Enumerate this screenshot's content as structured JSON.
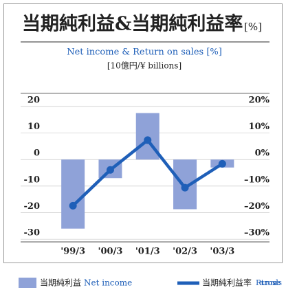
{
  "chart_data": {
    "type": "bar_line",
    "title": "当期純利益&当期純利益率",
    "title_unit": "[%]",
    "subtitle": "Net income  & Return on sales [%]",
    "unit_label": "[10億円/¥ billions]",
    "categories": [
      "'99/3",
      "'00/3",
      "'01/3",
      "'02/3",
      "'03/3"
    ],
    "series": [
      {
        "name": "当期純利益",
        "name_en": "Net income",
        "type": "bar",
        "color": "#8fa2d8",
        "values": [
          -26,
          -7,
          17.5,
          -18.7,
          -3
        ]
      },
      {
        "name": "当期純利益率",
        "name_en": "Return on sales",
        "type": "line",
        "axis": "y2",
        "color": "#1f5fb8",
        "values": [
          -17.4,
          -3.9,
          7.3,
          -10.6,
          -1.6
        ]
      }
    ],
    "ylim": [
      -31,
      25
    ],
    "yticks": [
      20,
      10,
      0,
      -10,
      -20,
      -30
    ],
    "y2lim": [
      -31,
      25
    ],
    "y2ticks": [
      {
        "value": 20,
        "label": "20%"
      },
      {
        "value": 10,
        "label": "10%"
      },
      {
        "value": 0,
        "label": "0%"
      },
      {
        "value": -10,
        "label": "–10%"
      },
      {
        "value": -20,
        "label": "–20%"
      },
      {
        "value": -30,
        "label": "–30%"
      }
    ],
    "grid": true
  }
}
